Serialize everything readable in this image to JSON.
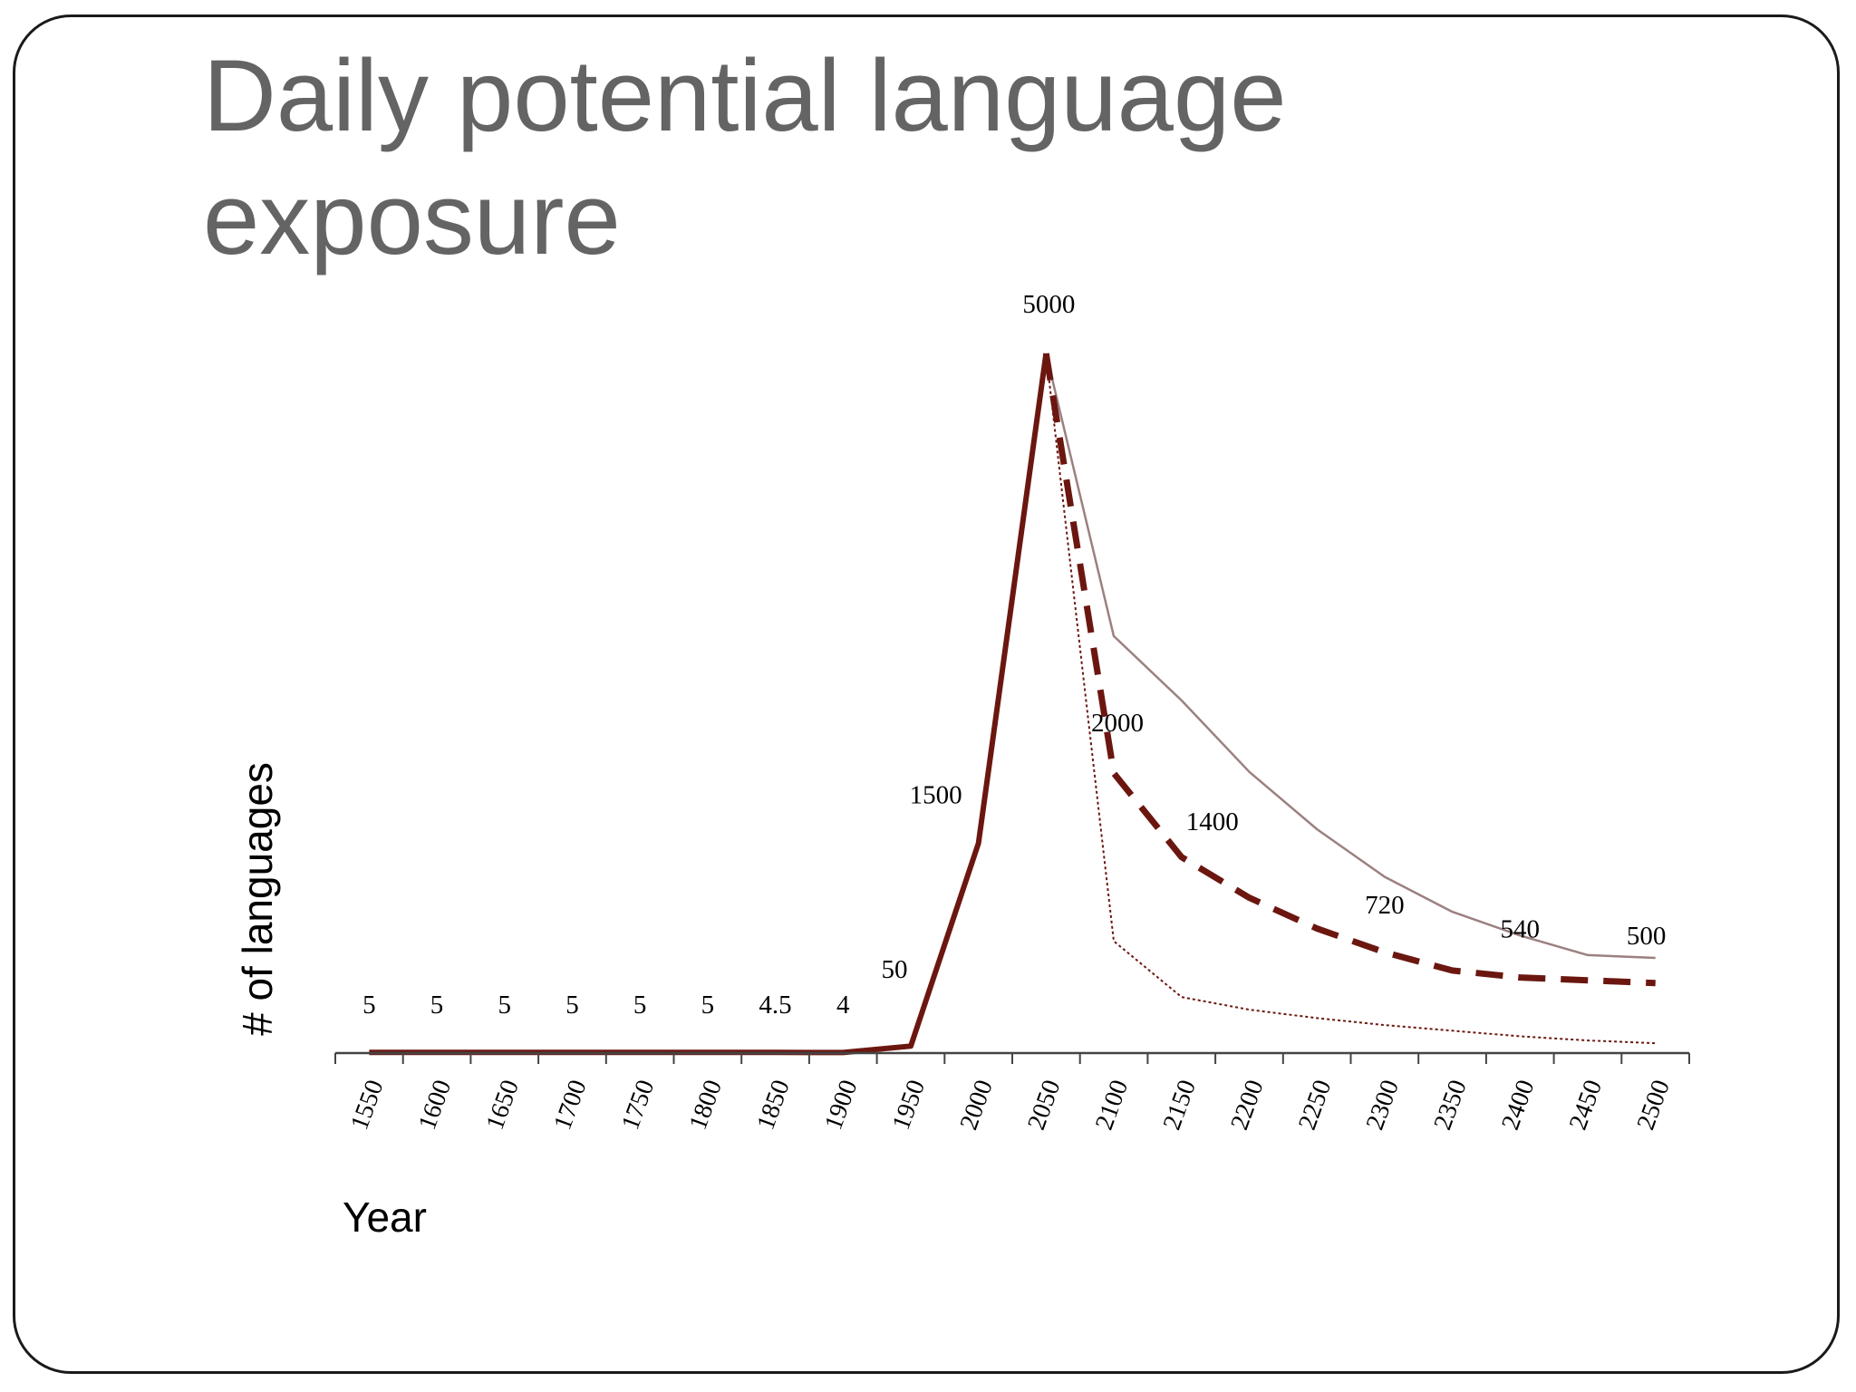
{
  "slide": {
    "title": "Daily potential language exposure"
  },
  "chart_data": {
    "type": "line",
    "title": "",
    "xlabel": "Year",
    "ylabel": "# of languages",
    "x_categories": [
      "1550",
      "1600",
      "1650",
      "1700",
      "1750",
      "1800",
      "1850",
      "1900",
      "1950",
      "2000",
      "2050",
      "2100",
      "2150",
      "2200",
      "2250",
      "2300",
      "2350",
      "2400",
      "2450",
      "2500"
    ],
    "ylim": [
      0,
      5400
    ],
    "grid": false,
    "legend": "none",
    "colors": {
      "series": "#6b1710",
      "upper_series": "#9c8080",
      "axis": "#444444"
    },
    "series": [
      {
        "style": "solid-thick",
        "points": [
          [
            1575,
            5
          ],
          [
            1625,
            5
          ],
          [
            1675,
            5
          ],
          [
            1725,
            5
          ],
          [
            1775,
            5
          ],
          [
            1825,
            5
          ],
          [
            1875,
            4.5
          ],
          [
            1925,
            4
          ],
          [
            1975,
            50
          ],
          [
            2025,
            1500
          ],
          [
            2075,
            5000
          ]
        ]
      },
      {
        "style": "solid-thin",
        "points": [
          [
            2075,
            5000
          ],
          [
            2125,
            2980
          ],
          [
            2175,
            2520
          ],
          [
            2225,
            2010
          ],
          [
            2275,
            1600
          ],
          [
            2325,
            1260
          ],
          [
            2375,
            1010
          ],
          [
            2425,
            840
          ],
          [
            2475,
            700
          ],
          [
            2525,
            680
          ]
        ]
      },
      {
        "style": "dashed",
        "points": [
          [
            2075,
            5000
          ],
          [
            2125,
            2000
          ],
          [
            2175,
            1400
          ],
          [
            2225,
            1110
          ],
          [
            2275,
            890
          ],
          [
            2325,
            720
          ],
          [
            2375,
            590
          ],
          [
            2425,
            540
          ],
          [
            2475,
            520
          ],
          [
            2525,
            500
          ]
        ]
      },
      {
        "style": "dotted",
        "points": [
          [
            2075,
            5000
          ],
          [
            2125,
            800
          ],
          [
            2175,
            400
          ],
          [
            2225,
            310
          ],
          [
            2275,
            250
          ],
          [
            2325,
            200
          ],
          [
            2375,
            160
          ],
          [
            2425,
            120
          ],
          [
            2475,
            90
          ],
          [
            2525,
            70
          ]
        ]
      }
    ],
    "data_labels": [
      {
        "text": "5",
        "x": 1575,
        "y": 5
      },
      {
        "text": "5",
        "x": 1625,
        "y": 5
      },
      {
        "text": "5",
        "x": 1675,
        "y": 5
      },
      {
        "text": "5",
        "x": 1725,
        "y": 5
      },
      {
        "text": "5",
        "x": 1775,
        "y": 5
      },
      {
        "text": "5",
        "x": 1825,
        "y": 5
      },
      {
        "text": "4.5",
        "x": 1875,
        "y": 4.5
      },
      {
        "text": "4",
        "x": 1925,
        "y": 4
      },
      {
        "text": "50",
        "x": 1975,
        "y": 50
      },
      {
        "text": "1500",
        "x": 2025,
        "y": 1500
      },
      {
        "text": "5000",
        "x": 2075,
        "y": 5000
      },
      {
        "text": "2000",
        "x": 2125,
        "y": 2000
      },
      {
        "text": "1400",
        "x": 2175,
        "y": 1400
      },
      {
        "text": "720",
        "x": 2325,
        "y": 720
      },
      {
        "text": "540",
        "x": 2425,
        "y": 540
      },
      {
        "text": "500",
        "x": 2525,
        "y": 500
      }
    ]
  }
}
